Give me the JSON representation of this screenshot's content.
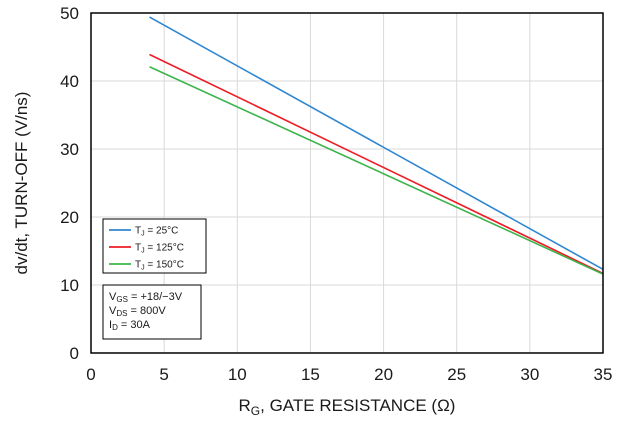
{
  "chart_data": {
    "type": "line",
    "xlabel": {
      "main": "R",
      "sub": "G",
      "rest": ", GATE RESISTANCE (Ω)"
    },
    "ylabel": "dv/dt, TURN-OFF  (V/ns)",
    "xlim": [
      0,
      35
    ],
    "ylim": [
      0,
      50
    ],
    "xticks": [
      0,
      5,
      10,
      15,
      20,
      25,
      30,
      35
    ],
    "yticks": [
      0,
      10,
      20,
      30,
      40,
      50
    ],
    "grid": true,
    "legend_placement": "lower-left",
    "series": [
      {
        "name": "25°C",
        "label_prefix": "T",
        "label_sub": "J",
        "label_rest": " = 25°C",
        "color": "#2f86d1",
        "x": [
          4,
          35
        ],
        "y": [
          49.4,
          12.3
        ]
      },
      {
        "name": "125°C",
        "label_prefix": "T",
        "label_sub": "J",
        "label_rest": " = 125°C",
        "color": "#ee1c25",
        "x": [
          4,
          35
        ],
        "y": [
          43.9,
          11.7
        ]
      },
      {
        "name": "150°C",
        "label_prefix": "T",
        "label_sub": "J",
        "label_rest": " = 150°C",
        "color": "#3cb44b",
        "x": [
          4,
          35
        ],
        "y": [
          42.1,
          11.6
        ]
      }
    ],
    "conditions": [
      {
        "main": "V",
        "sub": "GS",
        "rest": " = +18/−3V"
      },
      {
        "main": "V",
        "sub": "DS",
        "rest": " = 800V"
      },
      {
        "main": "I",
        "sub": "D",
        "rest": " = 30A"
      }
    ]
  }
}
